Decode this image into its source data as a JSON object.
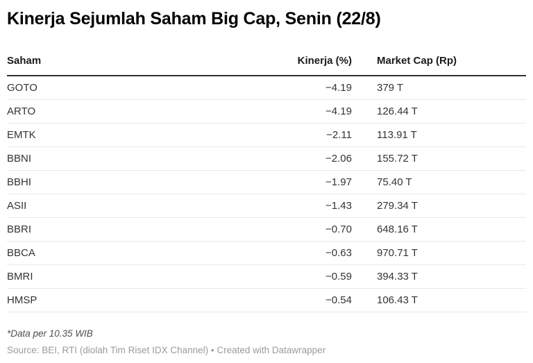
{
  "title": "Kinerja Sejumlah Saham Big Cap, Senin (22/8)",
  "table": {
    "columns": [
      "Saham",
      "Kinerja (%)",
      "Market Cap (Rp)"
    ],
    "rows": [
      {
        "saham": "GOTO",
        "kinerja": "−4.19",
        "marketcap": "379 T"
      },
      {
        "saham": "ARTO",
        "kinerja": "−4.19",
        "marketcap": "126.44 T"
      },
      {
        "saham": "EMTK",
        "kinerja": "−2.11",
        "marketcap": "113.91 T"
      },
      {
        "saham": "BBNI",
        "kinerja": "−2.06",
        "marketcap": "155.72 T"
      },
      {
        "saham": "BBHI",
        "kinerja": "−1.97",
        "marketcap": "75.40 T"
      },
      {
        "saham": "ASII",
        "kinerja": "−1.43",
        "marketcap": "279.34 T"
      },
      {
        "saham": "BBRI",
        "kinerja": "−0.70",
        "marketcap": "648.16 T"
      },
      {
        "saham": "BBCA",
        "kinerja": "−0.63",
        "marketcap": "970.71 T"
      },
      {
        "saham": "BMRI",
        "kinerja": "−0.59",
        "marketcap": "394.33 T"
      },
      {
        "saham": "HMSP",
        "kinerja": "−0.54",
        "marketcap": "106.43 T"
      }
    ]
  },
  "footer": {
    "note": "*Data per 10.35 WIB",
    "source": "Source: BEI, RTI (diolah Tim Riset IDX Channel)",
    "separator": " • ",
    "attribution": "Created with Datawrapper"
  },
  "colors": {
    "title": "#000000",
    "body_text": "#333333",
    "header_rule": "#333333",
    "row_divider": "#e8e8e8",
    "note_text": "#4d4d4d",
    "source_text": "#9b9b9b",
    "background": "#ffffff"
  },
  "chart_data": {
    "type": "table",
    "title": "Kinerja Sejumlah Saham Big Cap, Senin (22/8)",
    "columns": [
      "Saham",
      "Kinerja (%)",
      "Market Cap (Rp)"
    ],
    "rows": [
      {
        "saham": "GOTO",
        "kinerja_pct": -4.19,
        "market_cap_rp": "379 T"
      },
      {
        "saham": "ARTO",
        "kinerja_pct": -4.19,
        "market_cap_rp": "126.44 T"
      },
      {
        "saham": "EMTK",
        "kinerja_pct": -2.11,
        "market_cap_rp": "113.91 T"
      },
      {
        "saham": "BBNI",
        "kinerja_pct": -2.06,
        "market_cap_rp": "155.72 T"
      },
      {
        "saham": "BBHI",
        "kinerja_pct": -1.97,
        "market_cap_rp": "75.40 T"
      },
      {
        "saham": "ASII",
        "kinerja_pct": -1.43,
        "market_cap_rp": "279.34 T"
      },
      {
        "saham": "BBRI",
        "kinerja_pct": -0.7,
        "market_cap_rp": "648.16 T"
      },
      {
        "saham": "BBCA",
        "kinerja_pct": -0.63,
        "market_cap_rp": "970.71 T"
      },
      {
        "saham": "BMRI",
        "kinerja_pct": -0.59,
        "market_cap_rp": "394.33 T"
      },
      {
        "saham": "HMSP",
        "kinerja_pct": -0.54,
        "market_cap_rp": "106.43 T"
      }
    ],
    "note": "*Data per 10.35 WIB",
    "source": "BEI, RTI (diolah Tim Riset IDX Channel)",
    "tool": "Datawrapper"
  }
}
